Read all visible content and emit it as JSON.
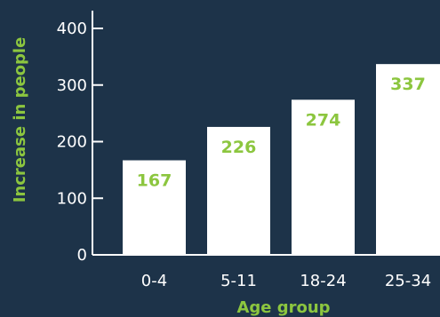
{
  "colors": {
    "background": "#1d3349",
    "bar": "#ffffff",
    "label": "#8cc63f",
    "axis": "#ffffff",
    "tick_text": "#ffffff"
  },
  "chart_data": {
    "type": "bar",
    "categories": [
      "0-4",
      "5-11",
      "18-24",
      "25-34"
    ],
    "values": [
      167,
      226,
      274,
      337
    ],
    "data_labels": [
      "167",
      "226",
      "274",
      "337"
    ],
    "xlabel": "Age group",
    "ylabel": "Increase in people",
    "ylim": [
      0,
      400
    ],
    "yticks": [
      0,
      100,
      200,
      300,
      400
    ],
    "grid": false,
    "legend": "none"
  }
}
